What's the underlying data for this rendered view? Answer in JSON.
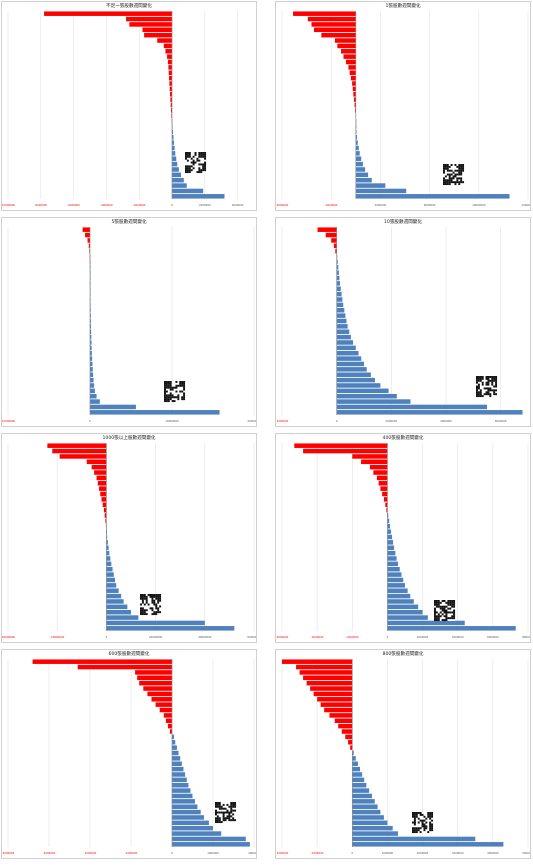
{
  "chart_data": [
    {
      "type": "bar",
      "title": "不足一張股數週間變化",
      "categories": [
        "",
        "",
        "",
        "",
        "",
        "",
        "",
        "",
        "",
        "",
        "",
        "",
        "",
        "",
        "",
        "",
        "",
        "",
        "",
        "",
        "",
        "",
        "",
        "",
        "",
        "",
        "",
        "",
        "",
        "",
        "",
        "",
        "",
        "",
        ""
      ],
      "values": [
        -7800000,
        -2800000,
        -2600000,
        -1800000,
        -1700000,
        -900000,
        -500000,
        -400000,
        -300000,
        -250000,
        -220000,
        -200000,
        -180000,
        -160000,
        -140000,
        -120000,
        -100000,
        -80000,
        -60000,
        -40000,
        -20000,
        30000,
        60000,
        90000,
        120000,
        160000,
        200000,
        260000,
        320000,
        420000,
        550000,
        720000,
        900000,
        1900000,
        3200000
      ],
      "xlim": [
        -10000000,
        5000000
      ],
      "xticks": [
        "-10000000",
        "-8000000",
        "-6000000",
        "-4000000",
        "-2000000",
        "0",
        "2000000",
        "4000000"
      ],
      "colors": {
        "negative": "#ff0000",
        "positive": "#4f81bd"
      }
    },
    {
      "type": "bar",
      "title": "1張股數週間變化",
      "categories": [
        "",
        "",
        "",
        "",
        "",
        "",
        "",
        "",
        "",
        "",
        "",
        "",
        "",
        "",
        "",
        "",
        "",
        "",
        "",
        "",
        "",
        "",
        "",
        "",
        "",
        "",
        "",
        "",
        "",
        "",
        "",
        "",
        "",
        "",
        ""
      ],
      "values": [
        -5100000,
        -3900000,
        -3600000,
        -3400000,
        -2800000,
        -1700000,
        -1500000,
        -1200000,
        -1000000,
        -800000,
        -600000,
        -500000,
        -400000,
        -300000,
        -250000,
        -200000,
        -150000,
        -100000,
        -60000,
        -30000,
        -10000,
        20000,
        60000,
        100000,
        160000,
        240000,
        320000,
        440000,
        580000,
        760000,
        1000000,
        1300000,
        2400000,
        4100000,
        12500000
      ],
      "xlim": [
        -6000000,
        14000000
      ],
      "xticks": [
        "-6000000",
        "-2000000",
        "2000000",
        "6000000",
        "10000000",
        "14000000"
      ],
      "colors": {
        "negative": "#ff0000",
        "positive": "#4f81bd"
      }
    },
    {
      "type": "bar",
      "title": "5張股數週間變化",
      "categories": [
        "",
        "",
        "",
        "",
        "",
        "",
        "",
        "",
        "",
        "",
        "",
        "",
        "",
        "",
        "",
        "",
        "",
        "",
        "",
        "",
        "",
        "",
        "",
        "",
        "",
        "",
        "",
        "",
        "",
        "",
        "",
        "",
        "",
        "",
        ""
      ],
      "values": [
        -900000,
        -600000,
        -300000,
        -150000,
        -80000,
        -40000,
        -20000,
        10000,
        20000,
        30000,
        40000,
        50000,
        60000,
        70000,
        80000,
        90000,
        100000,
        110000,
        120000,
        140000,
        160000,
        180000,
        200000,
        230000,
        260000,
        300000,
        340000,
        380000,
        430000,
        500000,
        600000,
        800000,
        1200000,
        5600000,
        15800000
      ],
      "xlim": [
        -10000000,
        20000000
      ],
      "xticks": [
        "-10000000",
        "0",
        "10000000",
        "20000000"
      ],
      "colors": {
        "negative": "#ff0000",
        "positive": "#4f81bd"
      }
    },
    {
      "type": "bar",
      "title": "10張股數週間變化",
      "categories": [
        "",
        "",
        "",
        "",
        "",
        "",
        "",
        "",
        "",
        "",
        "",
        "",
        "",
        "",
        "",
        "",
        "",
        "",
        "",
        "",
        "",
        "",
        "",
        "",
        "",
        "",
        "",
        "",
        "",
        "",
        "",
        "",
        "",
        "",
        ""
      ],
      "values": [
        -700000,
        -400000,
        -200000,
        -100000,
        -50000,
        20000,
        40000,
        60000,
        80000,
        100000,
        120000,
        150000,
        180000,
        210000,
        240000,
        280000,
        320000,
        360000,
        400000,
        460000,
        520000,
        600000,
        700000,
        800000,
        900000,
        1000000,
        1100000,
        1250000,
        1400000,
        1600000,
        1900000,
        2200000,
        2700000,
        5500000,
        6800000
      ],
      "xlim": [
        -2000000,
        7000000
      ],
      "xticks": [
        "-2000000",
        "0",
        "2000000",
        "4000000",
        "6000000"
      ],
      "colors": {
        "negative": "#ff0000",
        "positive": "#4f81bd"
      }
    },
    {
      "type": "bar",
      "title": "1000張以上股數週間變化",
      "categories": [
        "",
        "",
        "",
        "",
        "",
        "",
        "",
        "",
        "",
        "",
        "",
        "",
        "",
        "",
        "",
        "",
        "",
        "",
        "",
        "",
        "",
        "",
        "",
        "",
        "",
        "",
        "",
        "",
        "",
        "",
        "",
        "",
        "",
        "",
        ""
      ],
      "values": [
        -24000000,
        -22000000,
        -19000000,
        -8000000,
        -6000000,
        -5000000,
        -4000000,
        -3500000,
        -3000000,
        -2500000,
        -2000000,
        -1500000,
        -1000000,
        -700000,
        -400000,
        -200000,
        100000,
        300000,
        600000,
        900000,
        1200000,
        1600000,
        2000000,
        2500000,
        3000000,
        3500000,
        4000000,
        5000000,
        6000000,
        7000000,
        8500000,
        10000000,
        13000000,
        40000000,
        52000000
      ],
      "xlim": [
        -40000000,
        60000000
      ],
      "xticks": [
        "-40000000",
        "-20000000",
        "0",
        "20000000",
        "40000000",
        "60000000"
      ],
      "colors": {
        "negative": "#ff0000",
        "positive": "#4f81bd"
      }
    },
    {
      "type": "bar",
      "title": "400張股數週間變化",
      "categories": [
        "",
        "",
        "",
        "",
        "",
        "",
        "",
        "",
        "",
        "",
        "",
        "",
        "",
        "",
        "",
        "",
        "",
        "",
        "",
        "",
        "",
        "",
        "",
        "",
        "",
        "",
        "",
        "",
        "",
        "",
        "",
        "",
        "",
        "",
        ""
      ],
      "values": [
        -5300000,
        -4800000,
        -2000000,
        -1500000,
        -1000000,
        -800000,
        -600000,
        -500000,
        -400000,
        -300000,
        -200000,
        -120000,
        -60000,
        50000,
        100000,
        150000,
        200000,
        260000,
        320000,
        380000,
        450000,
        520000,
        600000,
        700000,
        800000,
        900000,
        1000000,
        1150000,
        1300000,
        1500000,
        1750000,
        2000000,
        2300000,
        4400000,
        7300000
      ],
      "xlim": [
        -6000000,
        8000000
      ],
      "xticks": [
        "-6000000",
        "-4000000",
        "-2000000",
        "0",
        "2000000",
        "4000000",
        "6000000",
        "8000000"
      ],
      "colors": {
        "negative": "#ff0000",
        "positive": "#4f81bd"
      }
    },
    {
      "type": "bar",
      "title": "600張股數週間變化",
      "categories": [
        "",
        "",
        "",
        "",
        "",
        "",
        "",
        "",
        "",
        "",
        "",
        "",
        "",
        "",
        "",
        "",
        "",
        "",
        "",
        "",
        "",
        "",
        "",
        "",
        "",
        "",
        "",
        "",
        "",
        "",
        "",
        "",
        "",
        "",
        ""
      ],
      "values": [
        -3400000,
        -2300000,
        -900000,
        -850000,
        -800000,
        -700000,
        -600000,
        -500000,
        -400000,
        -300000,
        -200000,
        -150000,
        -100000,
        -50000,
        50000,
        80000,
        120000,
        160000,
        200000,
        240000,
        280000,
        320000,
        360000,
        400000,
        450000,
        500000,
        560000,
        620000,
        700000,
        780000,
        900000,
        1000000,
        1200000,
        1800000,
        1900000
      ],
      "xlim": [
        -4000000,
        2000000
      ],
      "xticks": [
        "-4000000",
        "-3000000",
        "-2000000",
        "-1000000",
        "0",
        "1000000",
        "2000000"
      ],
      "colors": {
        "negative": "#ff0000",
        "positive": "#4f81bd"
      }
    },
    {
      "type": "bar",
      "title": "800張股數週間變化",
      "categories": [
        "",
        "",
        "",
        "",
        "",
        "",
        "",
        "",
        "",
        "",
        "",
        "",
        "",
        "",
        "",
        "",
        "",
        "",
        "",
        "",
        "",
        "",
        "",
        "",
        "",
        "",
        "",
        "",
        "",
        "",
        "",
        "",
        "",
        "",
        ""
      ],
      "values": [
        -2000000,
        -1600000,
        -1500000,
        -1400000,
        -1300000,
        -1200000,
        -1100000,
        -1000000,
        -900000,
        -800000,
        -650000,
        -500000,
        -400000,
        -300000,
        -200000,
        -120000,
        -60000,
        40000,
        100000,
        160000,
        220000,
        280000,
        340000,
        400000,
        480000,
        560000,
        640000,
        720000,
        800000,
        900000,
        1000000,
        1150000,
        1300000,
        3500000,
        4300000
      ],
      "xlim": [
        -2000000,
        5000000
      ],
      "xticks": [
        "-2000000",
        "-1000000",
        "0",
        "1000000",
        "2000000",
        "3000000",
        "4000000",
        "5000000"
      ],
      "colors": {
        "negative": "#ff0000",
        "positive": "#4f81bd"
      }
    }
  ]
}
